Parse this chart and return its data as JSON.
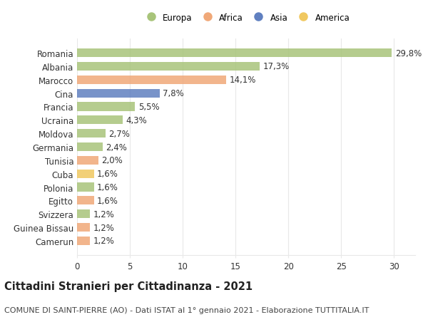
{
  "countries": [
    "Romania",
    "Albania",
    "Marocco",
    "Cina",
    "Francia",
    "Ucraina",
    "Moldova",
    "Germania",
    "Tunisia",
    "Cuba",
    "Polonia",
    "Egitto",
    "Svizzera",
    "Guinea Bissau",
    "Camerun"
  ],
  "values": [
    29.8,
    17.3,
    14.1,
    7.8,
    5.5,
    4.3,
    2.7,
    2.4,
    2.0,
    1.6,
    1.6,
    1.6,
    1.2,
    1.2,
    1.2
  ],
  "labels": [
    "29,8%",
    "17,3%",
    "14,1%",
    "7,8%",
    "5,5%",
    "4,3%",
    "2,7%",
    "2,4%",
    "2,0%",
    "1,6%",
    "1,6%",
    "1,6%",
    "1,2%",
    "1,2%",
    "1,2%"
  ],
  "continents": [
    "Europa",
    "Europa",
    "Africa",
    "Asia",
    "Europa",
    "Europa",
    "Europa",
    "Europa",
    "Africa",
    "America",
    "Europa",
    "Africa",
    "Europa",
    "Africa",
    "Africa"
  ],
  "colors": {
    "Europa": "#a8c47a",
    "Africa": "#f0a878",
    "Asia": "#6080c0",
    "America": "#f0c860"
  },
  "legend_order": [
    "Europa",
    "Africa",
    "Asia",
    "America"
  ],
  "xlim": [
    0,
    32
  ],
  "xticks": [
    0,
    5,
    10,
    15,
    20,
    25,
    30
  ],
  "title": "Cittadini Stranieri per Cittadinanza - 2021",
  "subtitle": "COMUNE DI SAINT-PIERRE (AO) - Dati ISTAT al 1° gennaio 2021 - Elaborazione TUTTITALIA.IT",
  "bg_color": "#ffffff",
  "grid_color": "#e8e8e8",
  "bar_height": 0.65,
  "label_fontsize": 8.5,
  "tick_fontsize": 8.5,
  "title_fontsize": 10.5,
  "subtitle_fontsize": 8.0
}
